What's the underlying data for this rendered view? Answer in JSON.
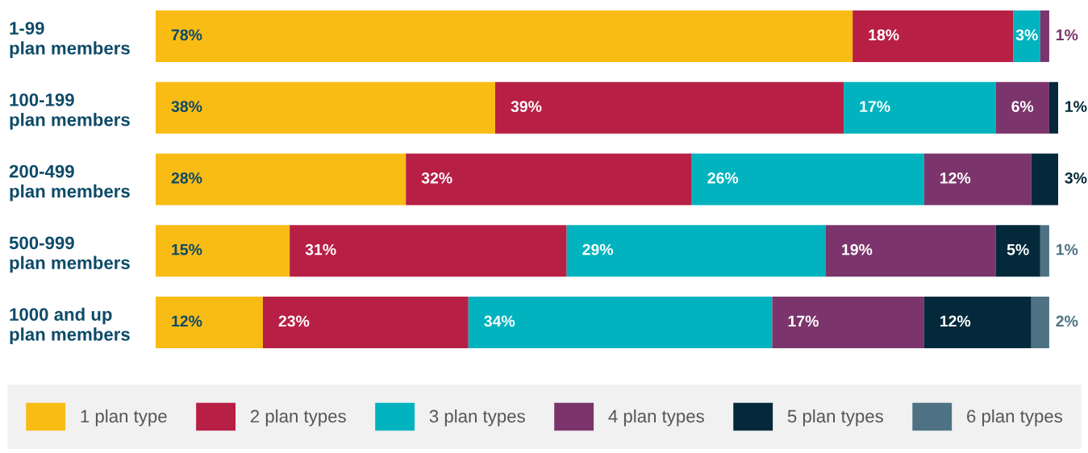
{
  "chart_data": {
    "type": "bar",
    "orientation": "horizontal",
    "stacked": true,
    "legend": "bottom",
    "grid": false,
    "tick_labels": "y",
    "categories": [
      "1-99\nplan members",
      "100-199\nplan members",
      "200-499\nplan members",
      "500-999\nplan members",
      "1000 and up\nplan members"
    ],
    "series": [
      {
        "name": "1 plan type",
        "color": "#f9bc15",
        "values": [
          78,
          38,
          28,
          15,
          12
        ],
        "value_labels": [
          "78%",
          "38%",
          "28%",
          "15%",
          "12%"
        ]
      },
      {
        "name": "2 plan types",
        "color": "#b81f45",
        "values": [
          18,
          39,
          32,
          31,
          23
        ],
        "value_labels": [
          "18%",
          "39%",
          "32%",
          "31%",
          "23%"
        ]
      },
      {
        "name": "3 plan types",
        "color": "#00b3be",
        "values": [
          3,
          17,
          26,
          29,
          34
        ],
        "value_labels": [
          "3%",
          "17%",
          "26%",
          "29%",
          "34%"
        ]
      },
      {
        "name": "4 plan types",
        "color": "#7b356c",
        "values": [
          1,
          6,
          12,
          19,
          17
        ],
        "value_labels": [
          "1%",
          "6%",
          "12%",
          "19%",
          "17%"
        ]
      },
      {
        "name": "5 plan types",
        "color": "#03293b",
        "values": [
          null,
          1,
          3,
          5,
          12
        ],
        "value_labels": [
          null,
          "1%",
          "3%",
          "5%",
          "12%"
        ]
      },
      {
        "name": "6 plan types",
        "color": "#4e7283",
        "values": [
          null,
          null,
          null,
          1,
          2
        ],
        "value_labels": [
          null,
          null,
          null,
          "1%",
          "2%"
        ]
      }
    ]
  }
}
